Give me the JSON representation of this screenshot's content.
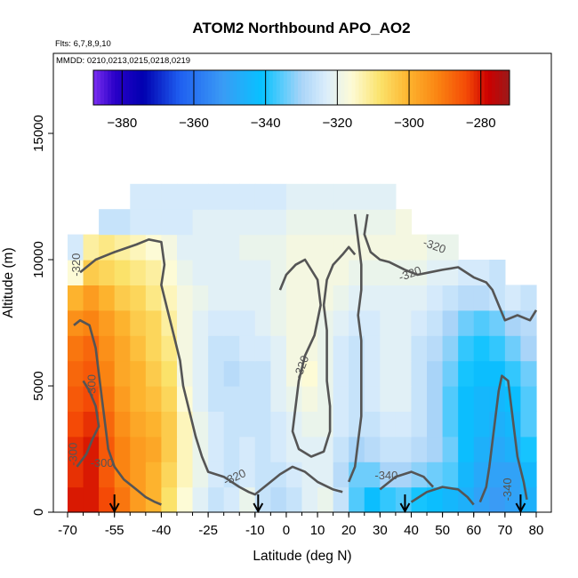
{
  "chart_data": {
    "type": "heatmap",
    "title": "ATOM2 Northbound APO_AO2",
    "flights_note": "Flts: 6,7,8,9,10",
    "dates_note": "MMDD: 0210,0213,0215,0218,0219",
    "xlabel": "Latitude (deg N)",
    "ylabel": "Altitude (m)",
    "xlim": [
      -70,
      80
    ],
    "ylim": [
      0,
      17500
    ],
    "x_ticks": [
      -70,
      -55,
      -40,
      -25,
      -10,
      0,
      10,
      20,
      30,
      40,
      50,
      60,
      70,
      80
    ],
    "y_ticks": [
      0,
      5000,
      10000,
      15000
    ],
    "colorbar": {
      "range": [
        -388,
        -272
      ],
      "ticks": [
        -380,
        -360,
        -340,
        -320,
        -300,
        -280
      ],
      "stops": [
        {
          "v": -388,
          "c": "#7b2ff0"
        },
        {
          "v": -382,
          "c": "#2a00c8"
        },
        {
          "v": -374,
          "c": "#0000b0"
        },
        {
          "v": -364,
          "c": "#1f5ef0"
        },
        {
          "v": -352,
          "c": "#3a9bf5"
        },
        {
          "v": -341,
          "c": "#07c2ff"
        },
        {
          "v": -330,
          "c": "#a9d4f8"
        },
        {
          "v": -323,
          "c": "#dceefb"
        },
        {
          "v": -316,
          "c": "#fdfbd6"
        },
        {
          "v": -308,
          "c": "#fbe26a"
        },
        {
          "v": -300,
          "c": "#fdb32e"
        },
        {
          "v": -292,
          "c": "#fa8412"
        },
        {
          "v": -284,
          "c": "#f44a06"
        },
        {
          "v": -278,
          "c": "#cc0000"
        },
        {
          "v": -272,
          "c": "#9a1a1a"
        }
      ]
    },
    "field": {
      "lat_bins": [
        -70,
        -65,
        -60,
        -55,
        -50,
        -45,
        -40,
        -35,
        -30,
        -25,
        -20,
        -15,
        -10,
        -5,
        0,
        5,
        10,
        15,
        20,
        25,
        30,
        35,
        40,
        45,
        50,
        55,
        60,
        65,
        70,
        75,
        80
      ],
      "alt_bins": [
        0,
        1000,
        2000,
        3000,
        4000,
        5000,
        6000,
        7000,
        8000,
        9000,
        10000,
        11000,
        12000,
        13000
      ],
      "values": [
        [
          -280,
          -280,
          -284,
          -290,
          -296,
          -300,
          -308,
          -316,
          -322,
          -326,
          -324,
          -320,
          -326,
          -328,
          -326,
          -322,
          -320,
          -326,
          -336,
          -342,
          -338,
          -336,
          -340,
          -342,
          -344,
          -346,
          -350,
          -352,
          -350,
          -346
        ],
        [
          -282,
          -280,
          -286,
          -292,
          -296,
          -300,
          -306,
          -314,
          -320,
          -324,
          -326,
          -324,
          -326,
          -326,
          -324,
          -322,
          -322,
          -328,
          -334,
          -334,
          -330,
          -330,
          -332,
          -334,
          -336,
          -344,
          -348,
          -350,
          -350,
          -344
        ],
        [
          -282,
          -280,
          -286,
          -292,
          -296,
          -298,
          -304,
          -314,
          -320,
          -324,
          -326,
          -324,
          -326,
          -324,
          -322,
          -322,
          -322,
          -326,
          -330,
          -328,
          -326,
          -326,
          -328,
          -330,
          -334,
          -342,
          -346,
          -348,
          -346,
          -340
        ],
        [
          -284,
          -282,
          -288,
          -294,
          -298,
          -300,
          -304,
          -314,
          -320,
          -324,
          -326,
          -326,
          -326,
          -324,
          -322,
          -320,
          -320,
          -324,
          -326,
          -326,
          -324,
          -324,
          -326,
          -330,
          -336,
          -342,
          -344,
          -346,
          -344,
          -336
        ],
        [
          -286,
          -284,
          -290,
          -296,
          -300,
          -302,
          -306,
          -316,
          -322,
          -326,
          -326,
          -326,
          -326,
          -322,
          -320,
          -318,
          -320,
          -324,
          -326,
          -324,
          -322,
          -322,
          -326,
          -330,
          -336,
          -342,
          -344,
          -344,
          -342,
          -336
        ],
        [
          -288,
          -286,
          -292,
          -298,
          -300,
          -304,
          -308,
          -318,
          -322,
          -326,
          -328,
          -326,
          -326,
          -322,
          -318,
          -316,
          -320,
          -324,
          -326,
          -324,
          -322,
          -322,
          -326,
          -330,
          -334,
          -340,
          -342,
          -342,
          -338,
          -334
        ],
        [
          -290,
          -288,
          -294,
          -298,
          -302,
          -306,
          -310,
          -318,
          -322,
          -326,
          -326,
          -324,
          -324,
          -322,
          -318,
          -318,
          -320,
          -324,
          -326,
          -324,
          -322,
          -322,
          -326,
          -328,
          -332,
          -338,
          -340,
          -338,
          -334,
          -330
        ],
        [
          -294,
          -292,
          -296,
          -300,
          -304,
          -306,
          -312,
          -318,
          -322,
          -324,
          -324,
          -324,
          -322,
          -320,
          -318,
          -318,
          -320,
          -322,
          -324,
          -324,
          -322,
          -322,
          -324,
          -326,
          -330,
          -334,
          -336,
          -334,
          -330,
          -328
        ],
        [
          -300,
          -296,
          -300,
          -304,
          -306,
          -310,
          -314,
          -318,
          -320,
          -322,
          -322,
          -322,
          -322,
          -320,
          -318,
          -318,
          -318,
          -320,
          -322,
          -322,
          -322,
          -322,
          -322,
          -324,
          -326,
          -328,
          -328,
          -326,
          -324,
          -326
        ],
        [
          -316,
          -304,
          -306,
          -308,
          -310,
          -312,
          -316,
          -320,
          -322,
          -322,
          -322,
          -322,
          -322,
          -320,
          -318,
          -318,
          -318,
          -318,
          -320,
          -320,
          -320,
          -320,
          -320,
          -322,
          -322,
          -324,
          -324,
          -326,
          null,
          null
        ],
        [
          -324,
          -312,
          -310,
          -312,
          -314,
          -316,
          -318,
          -322,
          -322,
          -322,
          -322,
          -320,
          -320,
          -320,
          -318,
          -318,
          -318,
          -318,
          -318,
          -318,
          -318,
          -318,
          -318,
          -320,
          -320,
          null,
          null,
          null,
          null,
          null
        ],
        [
          null,
          null,
          -326,
          -326,
          -324,
          -324,
          -324,
          -324,
          -322,
          -322,
          -322,
          -322,
          -322,
          -322,
          -320,
          -320,
          -320,
          -320,
          -320,
          -320,
          -320,
          -318,
          null,
          null,
          null,
          null,
          null,
          null,
          null,
          null
        ],
        [
          null,
          null,
          null,
          null,
          -324,
          -324,
          -324,
          -324,
          -324,
          -324,
          -324,
          -324,
          -324,
          -324,
          -322,
          -322,
          -322,
          -322,
          -322,
          -322,
          -322,
          null,
          null,
          null,
          null,
          null,
          null,
          null,
          null,
          null
        ]
      ]
    },
    "contour_labels": [
      "-320",
      "-320",
      "-320",
      "-320",
      "-320",
      "-300",
      "-300",
      "-300",
      "-340",
      "-340"
    ],
    "arrow_markers_lat": [
      -55,
      -9,
      38,
      75
    ]
  }
}
